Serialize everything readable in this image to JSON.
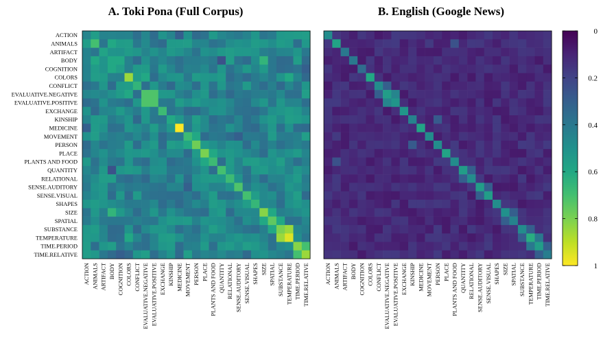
{
  "chart_data": {
    "type": "heatmap",
    "categories": [
      "ACTION",
      "ANIMALS",
      "ARTIFACT",
      "BODY",
      "COGNITION",
      "COLORS",
      "CONFLICT",
      "EVALUATIVE.NEGATIVE",
      "EVALUATIVE.POSITIVE",
      "EXCHANGE",
      "KINSHIP",
      "MEDICINE",
      "MOVEMENT",
      "PERSON",
      "PLACE",
      "PLANTS AND FOOD",
      "QUANTITY",
      "RELATIONAL",
      "SENSE.AUDITORY",
      "SENSE.VISUAL",
      "SHAPES",
      "SIZE",
      "SPATIAL",
      "SUBSTANCE",
      "TEMPERATURE",
      "TIME.PERIOD",
      "TIME.RELATIVE"
    ],
    "colorbar": {
      "ticks": [
        0,
        0.2,
        0.4,
        0.6,
        0.8,
        1
      ],
      "range": [
        0,
        1
      ],
      "colormap": "viridis",
      "reversed": true
    },
    "panels": [
      {
        "title": "A. Toki Pona (Full Corpus)",
        "diagonal": [
          0.45,
          0.7,
          0.58,
          0.6,
          0.55,
          0.85,
          0.65,
          0.72,
          0.72,
          0.68,
          0.6,
          1.0,
          0.68,
          0.78,
          0.8,
          0.68,
          0.7,
          0.68,
          0.72,
          0.7,
          0.66,
          0.82,
          0.75,
          0.8,
          0.95,
          0.82,
          0.85
        ],
        "baseline": 0.45,
        "highlights": [
          [
            0,
            1,
            0.55
          ],
          [
            1,
            0,
            0.55
          ],
          [
            4,
            3,
            0.6
          ],
          [
            3,
            4,
            0.6
          ],
          [
            1,
            3,
            0.6
          ],
          [
            3,
            1,
            0.6
          ],
          [
            0,
            11,
            0.3
          ],
          [
            11,
            0,
            0.3
          ],
          [
            5,
            19,
            0.35
          ],
          [
            19,
            5,
            0.35
          ],
          [
            7,
            8,
            0.72
          ],
          [
            8,
            7,
            0.72
          ],
          [
            13,
            12,
            0.6
          ],
          [
            12,
            13,
            0.6
          ],
          [
            18,
            12,
            0.3
          ],
          [
            12,
            18,
            0.3
          ],
          [
            23,
            24,
            0.85
          ],
          [
            24,
            23,
            0.85
          ],
          [
            23,
            22,
            0.6
          ],
          [
            22,
            23,
            0.6
          ],
          [
            25,
            26,
            0.7
          ],
          [
            26,
            25,
            0.7
          ],
          [
            22,
            21,
            0.6
          ],
          [
            21,
            22,
            0.6
          ],
          [
            3,
            21,
            0.65
          ],
          [
            21,
            3,
            0.65
          ],
          [
            5,
            7,
            0.6
          ],
          [
            7,
            5,
            0.6
          ],
          [
            14,
            15,
            0.6
          ],
          [
            15,
            14,
            0.6
          ],
          [
            19,
            20,
            0.55
          ],
          [
            20,
            19,
            0.55
          ],
          [
            5,
            24,
            0.6
          ],
          [
            24,
            5,
            0.6
          ],
          [
            3,
            16,
            0.25
          ],
          [
            16,
            3,
            0.25
          ],
          [
            10,
            13,
            0.55
          ],
          [
            13,
            10,
            0.55
          ],
          [
            4,
            26,
            0.3
          ],
          [
            26,
            4,
            0.3
          ]
        ]
      },
      {
        "title": "B. English (Google News)",
        "diagonal": [
          0.48,
          0.58,
          0.4,
          0.4,
          0.35,
          0.6,
          0.48,
          0.55,
          0.52,
          0.52,
          0.44,
          0.58,
          0.48,
          0.48,
          0.58,
          0.48,
          0.55,
          0.48,
          0.55,
          0.55,
          0.48,
          0.5,
          0.44,
          0.48,
          0.62,
          0.55,
          0.42
        ],
        "baseline": 0.12,
        "highlights": [
          [
            7,
            8,
            0.45
          ],
          [
            8,
            7,
            0.45
          ],
          [
            24,
            25,
            0.4
          ],
          [
            25,
            24,
            0.4
          ],
          [
            23,
            24,
            0.3
          ],
          [
            24,
            23,
            0.3
          ],
          [
            6,
            7,
            0.3
          ],
          [
            7,
            6,
            0.3
          ],
          [
            16,
            17,
            0.3
          ],
          [
            17,
            16,
            0.3
          ],
          [
            21,
            22,
            0.3
          ],
          [
            22,
            21,
            0.3
          ],
          [
            18,
            19,
            0.3
          ],
          [
            19,
            18,
            0.3
          ],
          [
            13,
            10,
            0.28
          ],
          [
            10,
            13,
            0.28
          ],
          [
            1,
            15,
            0.25
          ],
          [
            15,
            1,
            0.25
          ],
          [
            25,
            26,
            0.3
          ],
          [
            26,
            25,
            0.3
          ]
        ]
      }
    ]
  }
}
